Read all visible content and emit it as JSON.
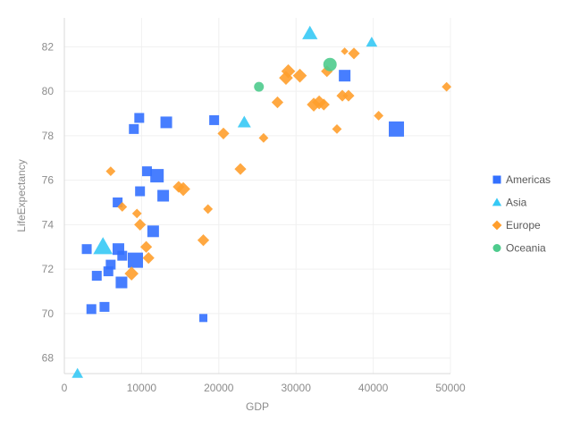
{
  "chart_data": {
    "type": "scatter",
    "xlabel": "GDP",
    "ylabel": "LifeExpectancy",
    "xlim": [
      0,
      50000
    ],
    "ylim": [
      67.3,
      83.3
    ],
    "xticks": [
      0,
      10000,
      20000,
      30000,
      40000,
      50000
    ],
    "yticks": [
      68,
      70,
      72,
      74,
      76,
      78,
      80,
      82
    ],
    "grid": true,
    "legend_position": "right",
    "series": [
      {
        "name": "Americas",
        "shape": "square",
        "color": "#3370ff",
        "points": [
          {
            "x": 2900,
            "y": 72.9,
            "size": 3
          },
          {
            "x": 3500,
            "y": 70.2,
            "size": 3
          },
          {
            "x": 4200,
            "y": 71.7,
            "size": 3
          },
          {
            "x": 5200,
            "y": 70.3,
            "size": 3
          },
          {
            "x": 5700,
            "y": 71.9,
            "size": 3
          },
          {
            "x": 6000,
            "y": 72.2,
            "size": 3
          },
          {
            "x": 6900,
            "y": 75.0,
            "size": 3
          },
          {
            "x": 7000,
            "y": 72.9,
            "size": 4
          },
          {
            "x": 7400,
            "y": 71.4,
            "size": 4
          },
          {
            "x": 7500,
            "y": 72.6,
            "size": 3
          },
          {
            "x": 9000,
            "y": 78.3,
            "size": 3
          },
          {
            "x": 9200,
            "y": 72.4,
            "size": 6
          },
          {
            "x": 9700,
            "y": 78.8,
            "size": 3
          },
          {
            "x": 9800,
            "y": 75.5,
            "size": 3
          },
          {
            "x": 10700,
            "y": 76.4,
            "size": 3
          },
          {
            "x": 11500,
            "y": 73.7,
            "size": 4
          },
          {
            "x": 12000,
            "y": 76.2,
            "size": 5
          },
          {
            "x": 12800,
            "y": 75.3,
            "size": 4
          },
          {
            "x": 13200,
            "y": 78.6,
            "size": 4
          },
          {
            "x": 18000,
            "y": 69.8,
            "size": 2
          },
          {
            "x": 19400,
            "y": 78.7,
            "size": 3
          },
          {
            "x": 36300,
            "y": 80.7,
            "size": 4
          },
          {
            "x": 43000,
            "y": 78.3,
            "size": 6
          }
        ]
      },
      {
        "name": "Asia",
        "shape": "triangle",
        "color": "#36c9f5",
        "points": [
          {
            "x": 1700,
            "y": 67.3,
            "size": 3
          },
          {
            "x": 5000,
            "y": 73.0,
            "size": 7
          },
          {
            "x": 23300,
            "y": 78.6,
            "size": 4
          },
          {
            "x": 31800,
            "y": 82.6,
            "size": 5
          },
          {
            "x": 39800,
            "y": 82.2,
            "size": 3
          }
        ]
      },
      {
        "name": "Europe",
        "shape": "diamond",
        "color": "#ff9e2c",
        "points": [
          {
            "x": 6000,
            "y": 76.4,
            "size": 2
          },
          {
            "x": 7500,
            "y": 74.8,
            "size": 2
          },
          {
            "x": 8700,
            "y": 71.8,
            "size": 4
          },
          {
            "x": 9400,
            "y": 74.5,
            "size": 2
          },
          {
            "x": 9800,
            "y": 74.0,
            "size": 3
          },
          {
            "x": 10600,
            "y": 73.0,
            "size": 3
          },
          {
            "x": 10900,
            "y": 72.5,
            "size": 3
          },
          {
            "x": 14800,
            "y": 75.7,
            "size": 3
          },
          {
            "x": 15400,
            "y": 75.6,
            "size": 4
          },
          {
            "x": 18000,
            "y": 73.3,
            "size": 3
          },
          {
            "x": 18600,
            "y": 74.7,
            "size": 2
          },
          {
            "x": 20600,
            "y": 78.1,
            "size": 3
          },
          {
            "x": 22800,
            "y": 76.5,
            "size": 3
          },
          {
            "x": 25800,
            "y": 77.9,
            "size": 2
          },
          {
            "x": 27600,
            "y": 79.5,
            "size": 3
          },
          {
            "x": 28700,
            "y": 80.6,
            "size": 4
          },
          {
            "x": 29000,
            "y": 80.9,
            "size": 4
          },
          {
            "x": 30500,
            "y": 80.7,
            "size": 4
          },
          {
            "x": 32300,
            "y": 79.4,
            "size": 4
          },
          {
            "x": 33000,
            "y": 79.5,
            "size": 4
          },
          {
            "x": 33600,
            "y": 79.4,
            "size": 3
          },
          {
            "x": 34000,
            "y": 80.9,
            "size": 3
          },
          {
            "x": 35300,
            "y": 78.3,
            "size": 2
          },
          {
            "x": 36000,
            "y": 79.8,
            "size": 3
          },
          {
            "x": 36300,
            "y": 81.8,
            "size": 1
          },
          {
            "x": 36800,
            "y": 79.8,
            "size": 3
          },
          {
            "x": 37500,
            "y": 81.7,
            "size": 3
          },
          {
            "x": 40700,
            "y": 78.9,
            "size": 2
          },
          {
            "x": 49500,
            "y": 80.2,
            "size": 2
          }
        ]
      },
      {
        "name": "Oceania",
        "shape": "circle",
        "color": "#4ecb8d",
        "points": [
          {
            "x": 25200,
            "y": 80.2,
            "size": 3
          },
          {
            "x": 34400,
            "y": 81.2,
            "size": 5
          }
        ]
      }
    ]
  }
}
